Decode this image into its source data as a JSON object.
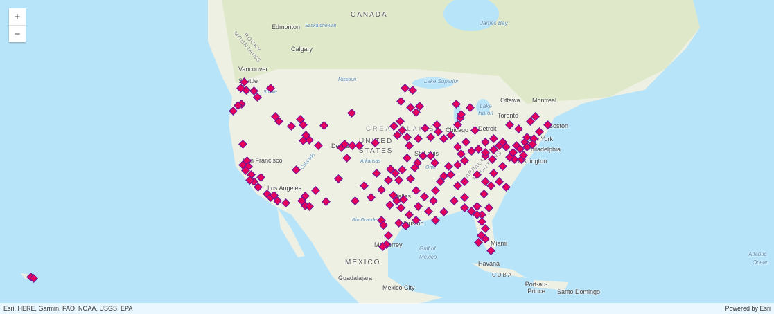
{
  "map": {
    "zoom_in_label": "+",
    "zoom_out_label": "−",
    "marker_fill": "#e5005d",
    "marker_stroke": "#5b1c9c",
    "labels": {
      "canada": "CANADA",
      "edmonton": "Edmonton",
      "saskatchewan": "Saskatchewan",
      "calgary": "Calgary",
      "james_bay": "James Bay",
      "vancouver": "Vancouver",
      "seattle": "Seattle",
      "snake": "Snake",
      "lake_superior": "Lake Superior",
      "missouri": "Missouri",
      "ottawa": "Ottawa",
      "montreal": "Montreal",
      "lake_huron": "Lake Huron",
      "toronto": "Toronto",
      "detroit": "Detroit",
      "chicago": "Chicago",
      "boston": "Boston",
      "new_york": "New York",
      "philadelphia": "Philadelphia",
      "washington": "Washington",
      "great_plains": "GREAT PLAINS",
      "united": "UNITED",
      "states": "STATES",
      "denver": "Denver",
      "st_louis": "St. Louis",
      "arkansas": "Arkansas",
      "colorado": "Colorado",
      "san_francisco": "San Francisco",
      "los_angeles": "Los Angeles",
      "dallas": "Dallas",
      "houston": "Houston",
      "rio_grande": "Rio Grande",
      "monterrey": "Monterrey",
      "gulf": "Gulf of",
      "mexico_water": "Mexico",
      "mexico": "MEXICO",
      "guadalajara": "Guadalajara",
      "mexico_city": "Mexico City",
      "miami": "Miami",
      "havana": "Havana",
      "cuba": "CUBA",
      "port_au_prince": "Port-au-Prince",
      "santo_domingo": "Santo Domingo",
      "atlantic": "Atlantic",
      "ocean": "Ocean",
      "rocky": "ROCKY MOUNTAINS",
      "appalachian": "APPALACHIAN MOUNTAINS",
      "ohio": "Ohio"
    }
  },
  "attribution": {
    "sources": "Esri, HERE, Garmin, FAO, NOAA, USGS, EPA",
    "powered": "Powered by Esri"
  }
}
